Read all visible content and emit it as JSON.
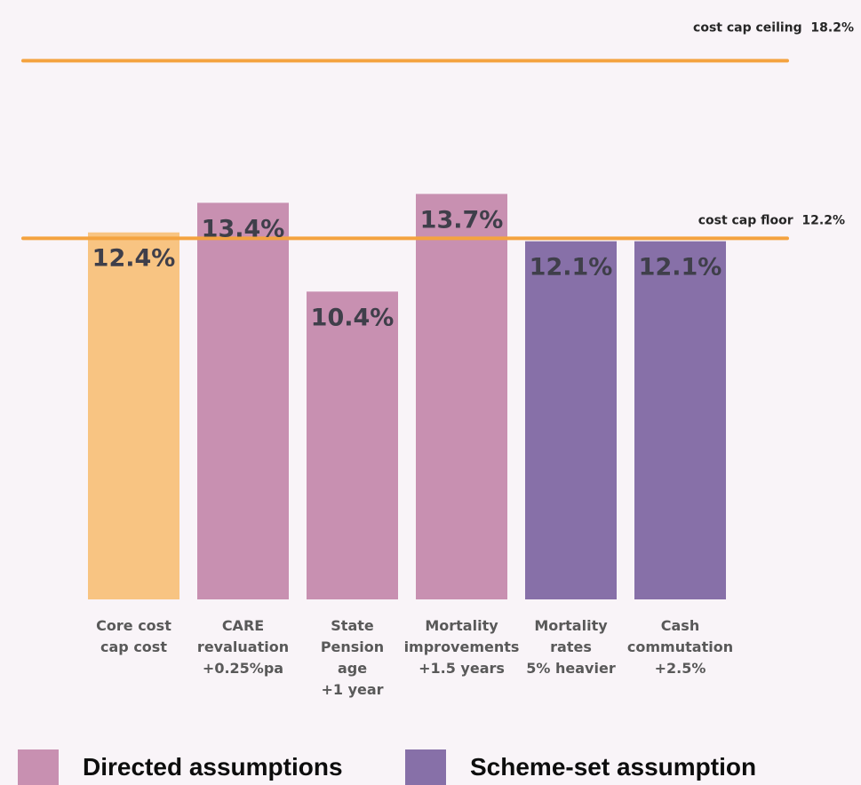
{
  "chart_data": {
    "type": "bar",
    "categories": [
      [
        "Core cost",
        "cap cost"
      ],
      [
        "CARE",
        "revaluation",
        "+0.25%pa"
      ],
      [
        "State",
        "Pension",
        "age",
        "+1 year"
      ],
      [
        "Mortality",
        "improvements",
        "+1.5 years"
      ],
      [
        "Mortality",
        "rates",
        "5% heavier"
      ],
      [
        "Cash",
        "commutation",
        "+2.5%"
      ]
    ],
    "values": [
      12.4,
      13.4,
      10.4,
      13.7,
      12.1,
      12.1
    ],
    "value_labels": [
      "12.4%",
      "13.4%",
      "10.4%",
      "13.7%",
      "12.1%",
      "12.1%"
    ],
    "bar_groups": [
      "core",
      "directed",
      "directed",
      "directed",
      "scheme",
      "scheme"
    ],
    "colors": {
      "core": "#f8c482",
      "directed": "#c890b1",
      "scheme": "#8770a8",
      "reference_line": "#f4a340"
    },
    "reference_lines": [
      {
        "value": 18.2,
        "label": "cost cap ceiling",
        "value_label": "18.2%"
      },
      {
        "value": 12.2,
        "label": "cost cap floor",
        "value_label": "12.2%"
      }
    ],
    "ylim": [
      0,
      20.5
    ],
    "title": "",
    "xlabel": "",
    "ylabel": ""
  },
  "legend": [
    {
      "label": "Directed assumptions",
      "color": "#c890b1"
    },
    {
      "label": "Scheme-set assumption",
      "color": "#8770a8"
    }
  ]
}
